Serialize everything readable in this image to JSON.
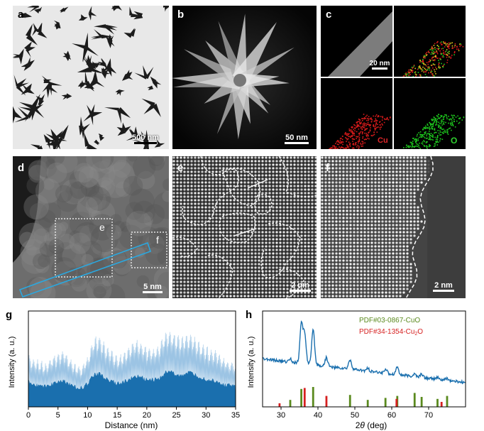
{
  "panels": {
    "a": {
      "label": "a",
      "scale_bar": "500 nm"
    },
    "b": {
      "label": "b",
      "scale_bar": "50 nm"
    },
    "c": {
      "label": "c",
      "scale_bar": "20 nm",
      "map_cu": "Cu",
      "map_o": "O"
    },
    "d": {
      "label": "d",
      "scale_bar": "5 nm",
      "roi_e": "e",
      "roi_f": "f"
    },
    "e": {
      "label": "e",
      "scale_bar": "2 nm"
    },
    "f": {
      "label": "f",
      "scale_bar": "2 nm"
    }
  },
  "colors": {
    "cu_map": "#d81b1b",
    "o_map": "#1ec81e",
    "profile": "#1a6fae",
    "cuo": "#5a8a1e",
    "cu2o": "#d62020",
    "roi_box": "#2aa8e0"
  },
  "chart_data": [
    {
      "panel": "g",
      "type": "area",
      "label": "g",
      "xlabel": "Distance (nm)",
      "ylabel": "Intensity (a. u.)",
      "xlim": [
        0,
        35
      ],
      "xticks": [
        0,
        5,
        10,
        15,
        20,
        25,
        30,
        35
      ],
      "grid": false,
      "envelope_x": [
        0,
        1,
        2,
        3,
        4,
        5,
        6,
        7,
        8,
        9,
        10,
        11,
        12,
        13,
        14,
        15,
        16,
        17,
        18,
        19,
        20,
        21,
        22,
        23,
        24,
        25,
        26,
        27,
        28,
        29,
        30,
        31,
        32,
        33,
        34,
        35
      ],
      "envelope_y": [
        0.42,
        0.38,
        0.36,
        0.34,
        0.4,
        0.42,
        0.46,
        0.38,
        0.33,
        0.32,
        0.4,
        0.56,
        0.58,
        0.5,
        0.46,
        0.4,
        0.43,
        0.48,
        0.55,
        0.52,
        0.48,
        0.46,
        0.5,
        0.6,
        0.62,
        0.58,
        0.56,
        0.6,
        0.57,
        0.52,
        0.48,
        0.46,
        0.44,
        0.38,
        0.36,
        0.34
      ]
    },
    {
      "panel": "h",
      "type": "line",
      "label": "h",
      "xlabel": "2θ (deg)",
      "ylabel": "Intensity (a. u.)",
      "xlim": [
        25,
        80
      ],
      "xticks": [
        30,
        40,
        50,
        60,
        70
      ],
      "legend_position": "top-right",
      "series": [
        {
          "name": "PDF#03-0867-CuO",
          "positions": [
            32.5,
            35.5,
            38.7,
            48.7,
            53.5,
            58.3,
            61.5,
            66.2,
            68.1,
            72.4,
            75.0
          ],
          "heights": [
            0.35,
            0.9,
            1.0,
            0.6,
            0.35,
            0.45,
            0.55,
            0.7,
            0.5,
            0.4,
            0.55
          ]
        },
        {
          "name": "PDF#34-1354-Cu2O",
          "name_prefix": "PDF#34-1354-Cu",
          "name_sub": "2",
          "name_suffix": "O",
          "positions": [
            29.6,
            36.4,
            42.3,
            61.3,
            73.5
          ],
          "heights": [
            0.18,
            0.95,
            0.55,
            0.4,
            0.25
          ]
        }
      ],
      "pattern_x": [
        25,
        30,
        32.5,
        35.5,
        36.4,
        38.7,
        42.3,
        48.7,
        53.5,
        58.3,
        61.5,
        66.2,
        68.1,
        72.4,
        75,
        80
      ],
      "pattern_peaks": [
        0,
        0,
        0.08,
        0.9,
        0.7,
        0.8,
        0.2,
        0.22,
        0.06,
        0.1,
        0.18,
        0.06,
        0.08,
        0.04,
        0.05,
        0
      ]
    }
  ]
}
